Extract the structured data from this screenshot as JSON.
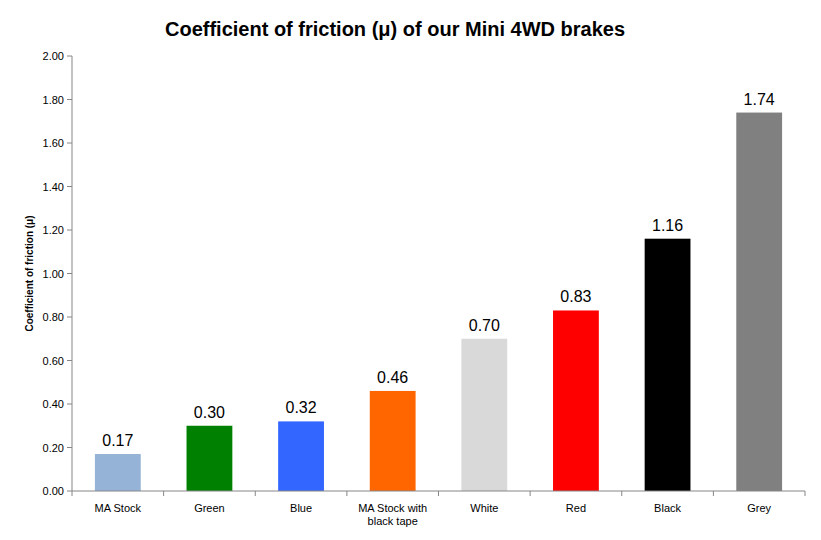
{
  "chart_data": {
    "type": "bar",
    "title": "Coefficient of friction (μ) of our Mini 4WD brakes",
    "y_label": "Coefficient of friction (μ)",
    "categories": [
      "MA Stock",
      "Green",
      "Blue",
      "MA Stock with black tape",
      "White",
      "Red",
      "Black",
      "Grey"
    ],
    "values": [
      0.17,
      0.3,
      0.32,
      0.46,
      0.7,
      0.83,
      1.16,
      1.74
    ],
    "value_labels": [
      "0.17",
      "0.30",
      "0.32",
      "0.46",
      "0.70",
      "0.83",
      "1.16",
      "1.74"
    ],
    "colors": [
      "#95b3d7",
      "#008000",
      "#3366ff",
      "#ff6600",
      "#d9d9d9",
      "#ff0000",
      "#000000",
      "#808080"
    ],
    "ylim": [
      0,
      2
    ],
    "yticks": [
      {
        "value": 0,
        "label": "0.00"
      },
      {
        "value": 0.2,
        "label": "0.20"
      },
      {
        "value": 0.4,
        "label": "0.40"
      },
      {
        "value": 0.6,
        "label": "0.60"
      },
      {
        "value": 0.8,
        "label": "0.80"
      },
      {
        "value": 1,
        "label": "1.00"
      },
      {
        "value": 1.2,
        "label": "1.20"
      },
      {
        "value": 1.4,
        "label": "1.40"
      },
      {
        "value": 1.6,
        "label": "1.60"
      },
      {
        "value": 1.8,
        "label": "1.80"
      },
      {
        "value": 2,
        "label": "2.00"
      }
    ],
    "grid": false,
    "data_labels": true
  }
}
